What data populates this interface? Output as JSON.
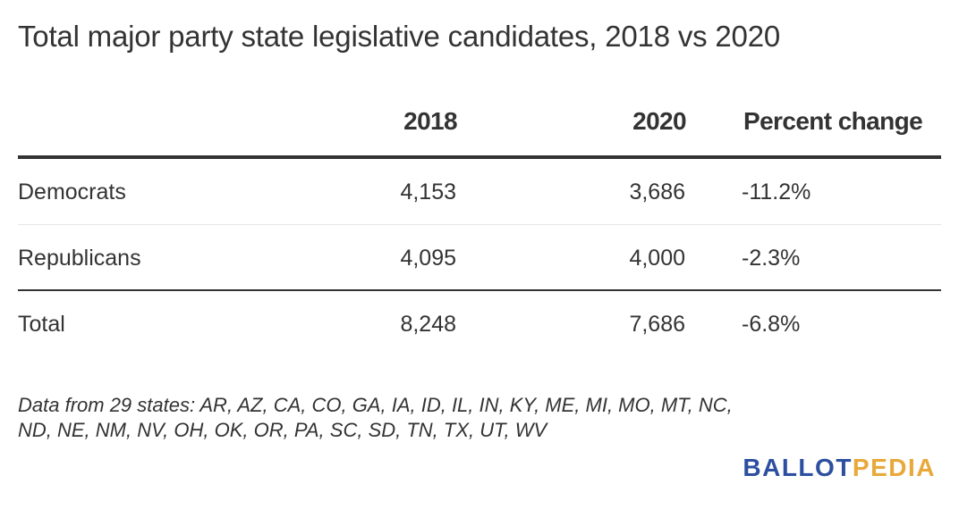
{
  "title": "Total major party state legislative candidates, 2018 vs 2020",
  "table": {
    "headers": [
      "",
      "2018",
      "2020",
      "Percent change"
    ],
    "rows": [
      [
        "Democrats",
        "4,153",
        "3,686",
        "-11.2%"
      ],
      [
        "Republicans",
        "4,095",
        "4,000",
        "-2.3%"
      ],
      [
        "Total",
        "8,248",
        "7,686",
        "-6.8%"
      ]
    ]
  },
  "note": "Data from 29 states: AR, AZ, CA, CO, GA, IA, ID, IL, IN, KY, ME, MI, MO, MT, NC, ND, NE, NM, NV, OH, OK, OR, PA, SC, SD, TN, TX, UT, WV",
  "logo": {
    "part1": "BALLOT",
    "part2": "PEDIA",
    "colors": {
      "part1": "#2d4fa0",
      "part2": "#e8a83a"
    }
  },
  "chart_data": {
    "type": "table",
    "title": "Total major party state legislative candidates, 2018 vs 2020",
    "columns": [
      "2018",
      "2020",
      "Percent change"
    ],
    "rows": [
      {
        "label": "Democrats",
        "values": [
          4153,
          3686,
          -11.2
        ]
      },
      {
        "label": "Republicans",
        "values": [
          4095,
          4000,
          -2.3
        ]
      },
      {
        "label": "Total",
        "values": [
          8248,
          7686,
          -6.8
        ]
      }
    ],
    "note": "Data from 29 states: AR, AZ, CA, CO, GA, IA, ID, IL, IN, KY, ME, MI, MO, MT, NC, ND, NE, NM, NV, OH, OK, OR, PA, SC, SD, TN, TX, UT, WV"
  }
}
